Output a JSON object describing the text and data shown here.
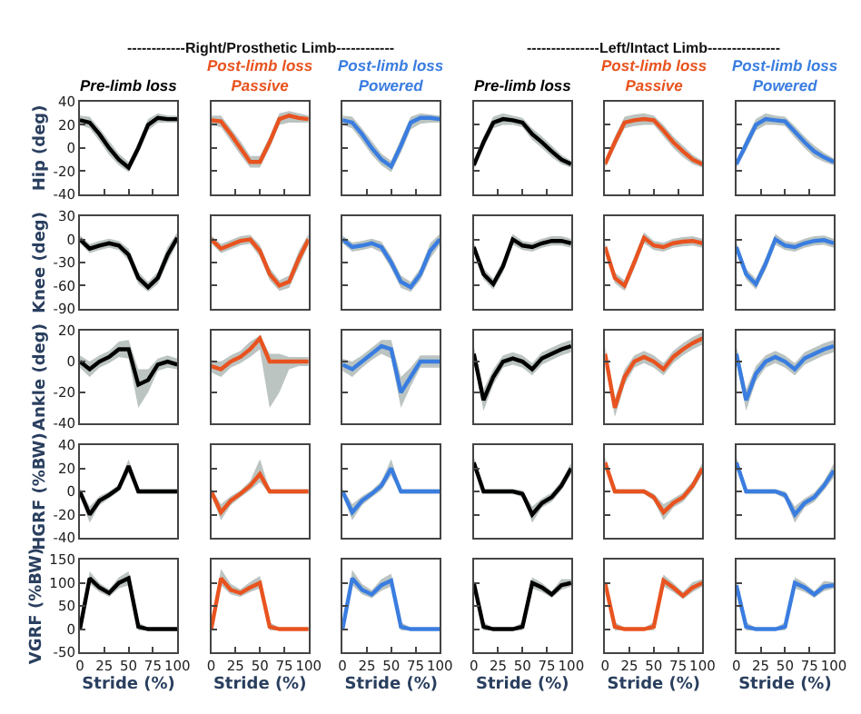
{
  "chart_data": [
    {
      "type": "line",
      "title": "Pre-limb loss",
      "ylabel": "Hip (deg)",
      "annotations": [
        "------------Right/Prosthetic Limb------------"
      ],
      "tick_labels": "y",
      "xlim": [
        0,
        100
      ],
      "xticks": [
        0,
        25,
        50,
        75,
        100
      ],
      "ylim": [
        -40,
        40
      ],
      "yticks": [
        -40,
        -20,
        0,
        20,
        40
      ],
      "x": [
        0,
        10,
        20,
        30,
        40,
        50,
        60,
        70,
        80,
        90,
        100
      ],
      "series": [
        {
          "color": "#000000",
          "values": [
            24,
            22,
            12,
            0,
            -10,
            -17,
            0,
            20,
            26,
            25,
            25
          ],
          "lower": [
            20,
            17,
            6,
            -6,
            -15,
            -21,
            -5,
            15,
            22,
            22,
            22
          ],
          "upper": [
            28,
            27,
            17,
            6,
            -5,
            -12,
            5,
            25,
            30,
            28,
            28
          ]
        }
      ]
    },
    {
      "type": "line",
      "title": "Post-limb loss",
      "subtitle": "Passive",
      "tick_labels": false,
      "xlim": [
        0,
        100
      ],
      "xticks": [
        0,
        25,
        50,
        75,
        100
      ],
      "ylim": [
        -40,
        40
      ],
      "yticks": [
        -40,
        -20,
        0,
        20,
        40
      ],
      "x": [
        0,
        10,
        20,
        30,
        40,
        50,
        60,
        70,
        80,
        90,
        100
      ],
      "series": [
        {
          "color": "#e8531f",
          "values": [
            24,
            23,
            12,
            0,
            -12,
            -12,
            5,
            25,
            28,
            26,
            25
          ],
          "lower": [
            20,
            18,
            6,
            -6,
            -17,
            -17,
            0,
            20,
            22,
            22,
            22
          ],
          "upper": [
            28,
            28,
            17,
            6,
            -7,
            -7,
            10,
            30,
            32,
            30,
            28
          ]
        }
      ]
    },
    {
      "type": "line",
      "title": "Post-limb loss",
      "subtitle": "Powered",
      "tick_labels": false,
      "xlim": [
        0,
        100
      ],
      "xticks": [
        0,
        25,
        50,
        75,
        100
      ],
      "ylim": [
        -40,
        40
      ],
      "yticks": [
        -40,
        -20,
        0,
        20,
        40
      ],
      "x": [
        0,
        10,
        20,
        30,
        40,
        50,
        60,
        70,
        80,
        90,
        100
      ],
      "series": [
        {
          "color": "#3a7de0",
          "values": [
            24,
            22,
            12,
            0,
            -10,
            -16,
            2,
            22,
            26,
            26,
            25
          ],
          "lower": [
            20,
            17,
            6,
            -6,
            -15,
            -21,
            -4,
            16,
            21,
            22,
            22
          ],
          "upper": [
            28,
            27,
            17,
            6,
            -5,
            -11,
            8,
            27,
            30,
            29,
            28
          ]
        }
      ]
    },
    {
      "type": "line",
      "title": "Pre-limb loss",
      "annotations": [
        "---------------Left/Intact Limb---------------"
      ],
      "tick_labels": false,
      "xlim": [
        0,
        100
      ],
      "xticks": [
        0,
        25,
        50,
        75,
        100
      ],
      "ylim": [
        -40,
        40
      ],
      "yticks": [
        -40,
        -20,
        0,
        20,
        40
      ],
      "x": [
        0,
        10,
        20,
        30,
        40,
        50,
        60,
        70,
        80,
        90,
        100
      ],
      "series": [
        {
          "color": "#000000",
          "values": [
            -15,
            5,
            22,
            25,
            24,
            22,
            12,
            5,
            -3,
            -10,
            -14
          ],
          "lower": [
            -18,
            0,
            17,
            20,
            20,
            18,
            7,
            0,
            -8,
            -14,
            -17
          ],
          "upper": [
            -12,
            10,
            27,
            30,
            28,
            26,
            17,
            10,
            2,
            -6,
            -11
          ]
        }
      ]
    },
    {
      "type": "line",
      "title": "Post-limb loss",
      "subtitle": "Passive",
      "tick_labels": false,
      "xlim": [
        0,
        100
      ],
      "xticks": [
        0,
        25,
        50,
        75,
        100
      ],
      "ylim": [
        -40,
        40
      ],
      "yticks": [
        -40,
        -20,
        0,
        20,
        40
      ],
      "x": [
        0,
        10,
        20,
        30,
        40,
        50,
        60,
        70,
        80,
        90,
        100
      ],
      "series": [
        {
          "color": "#e8531f",
          "values": [
            -14,
            5,
            22,
            24,
            25,
            24,
            15,
            5,
            -3,
            -10,
            -14
          ],
          "lower": [
            -17,
            0,
            17,
            19,
            20,
            20,
            10,
            0,
            -8,
            -14,
            -17
          ],
          "upper": [
            -11,
            10,
            27,
            29,
            30,
            28,
            20,
            10,
            2,
            -6,
            -11
          ]
        }
      ]
    },
    {
      "type": "line",
      "title": "Post-limb loss",
      "subtitle": "Powered",
      "tick_labels": false,
      "xlim": [
        0,
        100
      ],
      "xticks": [
        0,
        25,
        50,
        75,
        100
      ],
      "ylim": [
        -40,
        40
      ],
      "yticks": [
        -40,
        -20,
        0,
        20,
        40
      ],
      "x": [
        0,
        10,
        20,
        30,
        40,
        50,
        60,
        70,
        80,
        90,
        100
      ],
      "series": [
        {
          "color": "#3a7de0",
          "values": [
            -14,
            3,
            20,
            25,
            24,
            23,
            14,
            5,
            -3,
            -8,
            -12
          ],
          "lower": [
            -17,
            -2,
            15,
            20,
            20,
            19,
            9,
            0,
            -8,
            -12,
            -15
          ],
          "upper": [
            -11,
            8,
            25,
            30,
            28,
            27,
            19,
            10,
            2,
            -4,
            -9
          ]
        }
      ]
    },
    {
      "type": "line",
      "ylabel": "Knee (deg)",
      "tick_labels": "y",
      "xlim": [
        0,
        100
      ],
      "ylim": [
        -90,
        30
      ],
      "yticks": [
        -90,
        -60,
        -30,
        0,
        30
      ],
      "x": [
        0,
        10,
        20,
        30,
        40,
        50,
        60,
        70,
        80,
        90,
        100
      ],
      "series": [
        {
          "color": "#000000",
          "values": [
            0,
            -12,
            -8,
            -5,
            -8,
            -20,
            -50,
            -62,
            -50,
            -20,
            2
          ],
          "lower": [
            -5,
            -18,
            -14,
            -11,
            -14,
            -28,
            -58,
            -68,
            -58,
            -30,
            -5
          ],
          "upper": [
            5,
            -6,
            -2,
            1,
            -2,
            -12,
            -42,
            -55,
            -42,
            -10,
            9
          ]
        }
      ]
    },
    {
      "type": "line",
      "tick_labels": false,
      "xlim": [
        0,
        100
      ],
      "ylim": [
        -90,
        30
      ],
      "yticks": [
        -90,
        -60,
        -30,
        0,
        30
      ],
      "x": [
        0,
        10,
        20,
        30,
        40,
        50,
        60,
        70,
        80,
        90,
        100
      ],
      "series": [
        {
          "color": "#e8531f",
          "values": [
            0,
            -12,
            -7,
            -2,
            0,
            -15,
            -45,
            -60,
            -55,
            -25,
            0
          ],
          "lower": [
            -5,
            -18,
            -13,
            -8,
            -6,
            -23,
            -53,
            -67,
            -63,
            -35,
            -7
          ],
          "upper": [
            5,
            -6,
            -1,
            4,
            6,
            -7,
            -37,
            -53,
            -47,
            -15,
            7
          ]
        }
      ]
    },
    {
      "type": "line",
      "tick_labels": false,
      "xlim": [
        0,
        100
      ],
      "ylim": [
        -90,
        30
      ],
      "yticks": [
        -90,
        -60,
        -30,
        0,
        30
      ],
      "x": [
        0,
        10,
        20,
        30,
        40,
        50,
        60,
        70,
        80,
        90,
        100
      ],
      "series": [
        {
          "color": "#3a7de0",
          "values": [
            0,
            -10,
            -8,
            -5,
            -10,
            -30,
            -55,
            -62,
            -45,
            -15,
            0
          ],
          "lower": [
            -5,
            -16,
            -14,
            -11,
            -17,
            -38,
            -63,
            -68,
            -53,
            -25,
            -7
          ],
          "upper": [
            5,
            -4,
            -2,
            1,
            -3,
            -22,
            -47,
            -55,
            -37,
            -5,
            7
          ]
        }
      ]
    },
    {
      "type": "line",
      "tick_labels": false,
      "xlim": [
        0,
        100
      ],
      "ylim": [
        -90,
        30
      ],
      "yticks": [
        -90,
        -60,
        -30,
        0,
        30
      ],
      "x": [
        0,
        10,
        20,
        30,
        40,
        50,
        60,
        70,
        80,
        90,
        100
      ],
      "series": [
        {
          "color": "#000000",
          "values": [
            -10,
            -45,
            -58,
            -35,
            0,
            -8,
            -10,
            -5,
            -2,
            -2,
            -5
          ],
          "lower": [
            -16,
            -52,
            -65,
            -43,
            -7,
            -14,
            -16,
            -11,
            -8,
            -8,
            -11
          ],
          "upper": [
            -4,
            -38,
            -51,
            -27,
            7,
            -2,
            -4,
            1,
            4,
            4,
            1
          ]
        }
      ]
    },
    {
      "type": "line",
      "tick_labels": false,
      "xlim": [
        0,
        100
      ],
      "ylim": [
        -90,
        30
      ],
      "yticks": [
        -90,
        -60,
        -30,
        0,
        30
      ],
      "x": [
        0,
        10,
        20,
        30,
        40,
        50,
        60,
        70,
        80,
        90,
        100
      ],
      "series": [
        {
          "color": "#e8531f",
          "values": [
            -10,
            -50,
            -60,
            -30,
            2,
            -8,
            -10,
            -5,
            -3,
            -2,
            -5
          ],
          "lower": [
            -16,
            -57,
            -67,
            -38,
            -5,
            -14,
            -16,
            -11,
            -9,
            -8,
            -11
          ],
          "upper": [
            -4,
            -43,
            -53,
            -22,
            9,
            -2,
            -4,
            1,
            3,
            4,
            1
          ]
        }
      ]
    },
    {
      "type": "line",
      "tick_labels": false,
      "xlim": [
        0,
        100
      ],
      "ylim": [
        -90,
        30
      ],
      "yticks": [
        -90,
        -60,
        -30,
        0,
        30
      ],
      "x": [
        0,
        10,
        20,
        30,
        40,
        50,
        60,
        70,
        80,
        90,
        100
      ],
      "series": [
        {
          "color": "#3a7de0",
          "values": [
            -10,
            -45,
            -58,
            -32,
            0,
            -8,
            -10,
            -5,
            -2,
            -1,
            -5
          ],
          "lower": [
            -16,
            -52,
            -65,
            -40,
            -7,
            -14,
            -16,
            -11,
            -8,
            -7,
            -11
          ],
          "upper": [
            -4,
            -38,
            -51,
            -24,
            7,
            -2,
            -4,
            1,
            4,
            5,
            1
          ]
        }
      ]
    },
    {
      "type": "line",
      "ylabel": "Ankle (deg)",
      "tick_labels": "y",
      "xlim": [
        0,
        100
      ],
      "ylim": [
        -40,
        20
      ],
      "yticks": [
        -40,
        -20,
        0,
        20
      ],
      "x": [
        0,
        10,
        20,
        30,
        40,
        50,
        60,
        70,
        80,
        90,
        100
      ],
      "series": [
        {
          "color": "#000000",
          "values": [
            0,
            -5,
            0,
            3,
            8,
            8,
            -15,
            -12,
            -2,
            0,
            -2
          ],
          "lower": [
            -4,
            -10,
            -4,
            -1,
            3,
            2,
            -30,
            -20,
            -6,
            -4,
            -5
          ],
          "upper": [
            4,
            0,
            4,
            7,
            13,
            14,
            -5,
            -5,
            2,
            4,
            2
          ]
        }
      ]
    },
    {
      "type": "line",
      "tick_labels": false,
      "xlim": [
        0,
        100
      ],
      "ylim": [
        -40,
        20
      ],
      "yticks": [
        -40,
        -20,
        0,
        20
      ],
      "x": [
        0,
        10,
        20,
        30,
        40,
        50,
        60,
        70,
        80,
        90,
        100
      ],
      "series": [
        {
          "color": "#e8531f",
          "values": [
            -3,
            -5,
            0,
            3,
            8,
            15,
            0,
            0,
            0,
            0,
            0
          ],
          "lower": [
            -7,
            -10,
            -4,
            -1,
            3,
            8,
            -30,
            -20,
            -5,
            -3,
            -3
          ],
          "upper": [
            1,
            0,
            4,
            7,
            13,
            17,
            5,
            5,
            3,
            3,
            3
          ]
        }
      ]
    },
    {
      "type": "line",
      "tick_labels": false,
      "xlim": [
        0,
        100
      ],
      "ylim": [
        -40,
        20
      ],
      "yticks": [
        -40,
        -20,
        0,
        20
      ],
      "x": [
        0,
        10,
        20,
        30,
        40,
        50,
        60,
        70,
        80,
        90,
        100
      ],
      "series": [
        {
          "color": "#3a7de0",
          "values": [
            -2,
            -5,
            0,
            5,
            10,
            8,
            -20,
            -10,
            0,
            0,
            0
          ],
          "lower": [
            -6,
            -10,
            -4,
            1,
            5,
            2,
            -30,
            -16,
            -4,
            -4,
            -4
          ],
          "upper": [
            2,
            0,
            4,
            9,
            14,
            14,
            -10,
            -4,
            4,
            4,
            4
          ]
        }
      ]
    },
    {
      "type": "line",
      "tick_labels": false,
      "xlim": [
        0,
        100
      ],
      "ylim": [
        -40,
        20
      ],
      "yticks": [
        -40,
        -20,
        0,
        20
      ],
      "x": [
        0,
        10,
        20,
        30,
        40,
        50,
        60,
        70,
        80,
        90,
        100
      ],
      "series": [
        {
          "color": "#000000",
          "values": [
            5,
            -25,
            -10,
            0,
            2,
            0,
            -5,
            2,
            5,
            8,
            10
          ],
          "lower": [
            0,
            -32,
            -15,
            -4,
            -2,
            -4,
            -9,
            -2,
            1,
            4,
            6
          ],
          "upper": [
            10,
            -18,
            -5,
            4,
            6,
            4,
            -1,
            6,
            9,
            12,
            14
          ]
        }
      ]
    },
    {
      "type": "line",
      "tick_labels": false,
      "xlim": [
        0,
        100
      ],
      "ylim": [
        -40,
        20
      ],
      "yticks": [
        -40,
        -20,
        0,
        20
      ],
      "x": [
        0,
        10,
        20,
        30,
        40,
        50,
        60,
        70,
        80,
        90,
        100
      ],
      "series": [
        {
          "color": "#e8531f",
          "values": [
            5,
            -30,
            -10,
            0,
            3,
            0,
            -5,
            3,
            8,
            12,
            15
          ],
          "lower": [
            0,
            -36,
            -15,
            -4,
            -1,
            -4,
            -9,
            -1,
            4,
            8,
            11
          ],
          "upper": [
            10,
            -24,
            -5,
            4,
            7,
            4,
            -1,
            7,
            12,
            16,
            19
          ]
        }
      ]
    },
    {
      "type": "line",
      "tick_labels": false,
      "xlim": [
        0,
        100
      ],
      "ylim": [
        -40,
        20
      ],
      "yticks": [
        -40,
        -20,
        0,
        20
      ],
      "x": [
        0,
        10,
        20,
        30,
        40,
        50,
        60,
        70,
        80,
        90,
        100
      ],
      "series": [
        {
          "color": "#3a7de0",
          "values": [
            5,
            -25,
            -8,
            0,
            3,
            0,
            -5,
            2,
            5,
            8,
            10
          ],
          "lower": [
            0,
            -32,
            -13,
            -4,
            -1,
            -4,
            -9,
            -2,
            1,
            4,
            6
          ],
          "upper": [
            10,
            -18,
            -3,
            4,
            7,
            4,
            -1,
            6,
            9,
            12,
            14
          ]
        }
      ]
    },
    {
      "type": "line",
      "ylabel": "HGRF (%BW)",
      "tick_labels": "y",
      "xlim": [
        0,
        100
      ],
      "ylim": [
        -40,
        40
      ],
      "yticks": [
        -40,
        -20,
        0,
        20,
        40
      ],
      "x": [
        0,
        10,
        20,
        30,
        40,
        50,
        60,
        70,
        80,
        90,
        100
      ],
      "series": [
        {
          "color": "#000000",
          "values": [
            0,
            -20,
            -8,
            -3,
            3,
            22,
            0,
            0,
            0,
            0,
            0
          ],
          "lower": [
            -3,
            -27,
            -12,
            -6,
            0,
            16,
            -2,
            -2,
            -2,
            -2,
            -2
          ],
          "upper": [
            3,
            -13,
            -4,
            0,
            6,
            28,
            2,
            2,
            2,
            2,
            2
          ]
        }
      ]
    },
    {
      "type": "line",
      "tick_labels": false,
      "xlim": [
        0,
        100
      ],
      "ylim": [
        -40,
        40
      ],
      "yticks": [
        -40,
        -20,
        0,
        20,
        40
      ],
      "x": [
        0,
        10,
        20,
        30,
        40,
        50,
        60,
        70,
        80,
        90,
        100
      ],
      "series": [
        {
          "color": "#e8531f",
          "values": [
            0,
            -18,
            -8,
            -2,
            5,
            15,
            0,
            0,
            0,
            0,
            0
          ],
          "lower": [
            -3,
            -25,
            -12,
            -5,
            1,
            8,
            -2,
            -2,
            -2,
            -2,
            -2
          ],
          "upper": [
            3,
            -11,
            -4,
            1,
            9,
            28,
            2,
            2,
            2,
            2,
            2
          ]
        }
      ]
    },
    {
      "type": "line",
      "tick_labels": false,
      "xlim": [
        0,
        100
      ],
      "ylim": [
        -40,
        40
      ],
      "yticks": [
        -40,
        -20,
        0,
        20,
        40
      ],
      "x": [
        0,
        10,
        20,
        30,
        40,
        50,
        60,
        70,
        80,
        90,
        100
      ],
      "series": [
        {
          "color": "#3a7de0",
          "values": [
            0,
            -18,
            -8,
            -2,
            5,
            20,
            0,
            0,
            0,
            0,
            0
          ],
          "lower": [
            -3,
            -25,
            -12,
            -5,
            1,
            14,
            -2,
            -2,
            -2,
            -2,
            -2
          ],
          "upper": [
            3,
            -11,
            -4,
            1,
            9,
            28,
            2,
            2,
            2,
            2,
            2
          ]
        }
      ]
    },
    {
      "type": "line",
      "tick_labels": false,
      "xlim": [
        0,
        100
      ],
      "ylim": [
        -40,
        40
      ],
      "yticks": [
        -40,
        -20,
        0,
        20,
        40
      ],
      "x": [
        0,
        10,
        20,
        30,
        40,
        50,
        60,
        70,
        80,
        90,
        100
      ],
      "series": [
        {
          "color": "#000000",
          "values": [
            25,
            0,
            0,
            0,
            0,
            -2,
            -20,
            -10,
            -5,
            5,
            20
          ],
          "lower": [
            20,
            -2,
            -2,
            -2,
            -2,
            -5,
            -27,
            -14,
            -9,
            1,
            15
          ],
          "upper": [
            30,
            2,
            2,
            2,
            2,
            1,
            -13,
            -6,
            -1,
            9,
            25
          ]
        }
      ]
    },
    {
      "type": "line",
      "tick_labels": false,
      "xlim": [
        0,
        100
      ],
      "ylim": [
        -40,
        40
      ],
      "yticks": [
        -40,
        -20,
        0,
        20,
        40
      ],
      "x": [
        0,
        10,
        20,
        30,
        40,
        50,
        60,
        70,
        80,
        90,
        100
      ],
      "series": [
        {
          "color": "#e8531f",
          "values": [
            25,
            0,
            0,
            0,
            0,
            -5,
            -18,
            -10,
            -5,
            5,
            20
          ],
          "lower": [
            20,
            -2,
            -2,
            -2,
            -2,
            -8,
            -25,
            -14,
            -9,
            1,
            15
          ],
          "upper": [
            30,
            2,
            2,
            2,
            2,
            -2,
            -11,
            -6,
            -1,
            9,
            25
          ]
        }
      ]
    },
    {
      "type": "line",
      "tick_labels": false,
      "xlim": [
        0,
        100
      ],
      "ylim": [
        -40,
        40
      ],
      "yticks": [
        -40,
        -20,
        0,
        20,
        40
      ],
      "x": [
        0,
        10,
        20,
        30,
        40,
        50,
        60,
        70,
        80,
        90,
        100
      ],
      "series": [
        {
          "color": "#3a7de0",
          "values": [
            25,
            0,
            0,
            0,
            0,
            -3,
            -20,
            -10,
            -5,
            5,
            18
          ],
          "lower": [
            20,
            -2,
            -2,
            -2,
            -2,
            -6,
            -27,
            -14,
            -9,
            1,
            12
          ],
          "upper": [
            30,
            2,
            2,
            2,
            2,
            0,
            -13,
            -6,
            -1,
            9,
            24
          ]
        }
      ]
    },
    {
      "type": "line",
      "ylabel": "VGRF (%BW)",
      "xlabel": "Stride (%)",
      "xlim": [
        0,
        100
      ],
      "ylim": [
        -50,
        150
      ],
      "xticks": [
        0,
        25,
        50,
        75,
        100
      ],
      "yticks": [
        -50,
        0,
        50,
        100,
        150
      ],
      "x": [
        0,
        10,
        20,
        30,
        40,
        50,
        60,
        70,
        80,
        90,
        100
      ],
      "series": [
        {
          "color": "#000000",
          "values": [
            0,
            110,
            90,
            78,
            100,
            110,
            5,
            0,
            0,
            0,
            0
          ],
          "lower": [
            -5,
            98,
            80,
            70,
            88,
            95,
            -3,
            -3,
            -3,
            -3,
            -3
          ],
          "upper": [
            5,
            125,
            100,
            86,
            112,
            125,
            15,
            3,
            3,
            3,
            3
          ]
        }
      ]
    },
    {
      "type": "line",
      "xlabel": "Stride (%)",
      "tick_labels": "x",
      "xlim": [
        0,
        100
      ],
      "ylim": [
        -50,
        150
      ],
      "xticks": [
        0,
        25,
        50,
        75,
        100
      ],
      "yticks": [
        -50,
        0,
        50,
        100,
        150
      ],
      "x": [
        0,
        10,
        20,
        30,
        40,
        50,
        60,
        70,
        80,
        90,
        100
      ],
      "series": [
        {
          "color": "#e8531f",
          "values": [
            0,
            110,
            85,
            78,
            90,
            100,
            5,
            0,
            0,
            0,
            0
          ],
          "lower": [
            -5,
            95,
            75,
            70,
            80,
            88,
            -3,
            -3,
            -3,
            -3,
            -3
          ],
          "upper": [
            5,
            130,
            98,
            86,
            102,
            115,
            15,
            3,
            3,
            3,
            3
          ]
        }
      ]
    },
    {
      "type": "line",
      "xlabel": "Stride (%)",
      "tick_labels": "x",
      "xlim": [
        0,
        100
      ],
      "ylim": [
        -50,
        150
      ],
      "xticks": [
        0,
        25,
        50,
        75,
        100
      ],
      "yticks": [
        -50,
        0,
        50,
        100,
        150
      ],
      "x": [
        0,
        10,
        20,
        30,
        40,
        50,
        60,
        70,
        80,
        90,
        100
      ],
      "series": [
        {
          "color": "#3a7de0",
          "values": [
            0,
            110,
            85,
            75,
            95,
            105,
            5,
            0,
            0,
            0,
            0
          ],
          "lower": [
            -5,
            95,
            75,
            67,
            83,
            92,
            -3,
            -3,
            -3,
            -3,
            -3
          ],
          "upper": [
            5,
            128,
            98,
            84,
            108,
            120,
            15,
            3,
            3,
            3,
            3
          ]
        }
      ]
    },
    {
      "type": "line",
      "xlabel": "Stride (%)",
      "tick_labels": "x",
      "xlim": [
        0,
        100
      ],
      "ylim": [
        -50,
        150
      ],
      "xticks": [
        0,
        25,
        50,
        75,
        100
      ],
      "yticks": [
        -50,
        0,
        50,
        100,
        150
      ],
      "x": [
        0,
        10,
        20,
        30,
        40,
        50,
        60,
        70,
        80,
        90,
        100
      ],
      "series": [
        {
          "color": "#000000",
          "values": [
            100,
            5,
            0,
            0,
            0,
            5,
            100,
            90,
            75,
            95,
            100
          ],
          "lower": [
            92,
            -3,
            -3,
            -3,
            -3,
            -3,
            88,
            80,
            68,
            85,
            92
          ],
          "upper": [
            108,
            15,
            3,
            3,
            3,
            15,
            112,
            100,
            82,
            108,
            108
          ]
        }
      ]
    },
    {
      "type": "line",
      "xlabel": "Stride (%)",
      "tick_labels": "x",
      "xlim": [
        0,
        100
      ],
      "ylim": [
        -50,
        150
      ],
      "xticks": [
        0,
        25,
        50,
        75,
        100
      ],
      "yticks": [
        -50,
        0,
        50,
        100,
        150
      ],
      "x": [
        0,
        10,
        20,
        30,
        40,
        50,
        60,
        70,
        80,
        90,
        100
      ],
      "series": [
        {
          "color": "#e8531f",
          "values": [
            100,
            5,
            0,
            0,
            0,
            5,
            105,
            90,
            72,
            90,
            100
          ],
          "lower": [
            92,
            -3,
            -3,
            -3,
            -3,
            -3,
            92,
            80,
            65,
            80,
            92
          ],
          "upper": [
            108,
            15,
            3,
            3,
            3,
            15,
            118,
            100,
            80,
            102,
            108
          ]
        }
      ]
    },
    {
      "type": "line",
      "xlabel": "Stride (%)",
      "tick_labels": "x",
      "xlim": [
        0,
        100
      ],
      "ylim": [
        -50,
        150
      ],
      "xticks": [
        0,
        25,
        50,
        75,
        100
      ],
      "yticks": [
        -50,
        0,
        50,
        100,
        150
      ],
      "x": [
        0,
        10,
        20,
        30,
        40,
        50,
        60,
        70,
        80,
        90,
        100
      ],
      "series": [
        {
          "color": "#3a7de0",
          "values": [
            95,
            5,
            0,
            0,
            0,
            5,
            100,
            90,
            75,
            92,
            95
          ],
          "lower": [
            88,
            -3,
            -3,
            -3,
            -3,
            -3,
            88,
            80,
            68,
            82,
            88
          ],
          "upper": [
            102,
            15,
            3,
            3,
            3,
            15,
            112,
            100,
            82,
            104,
            102
          ]
        }
      ]
    }
  ]
}
